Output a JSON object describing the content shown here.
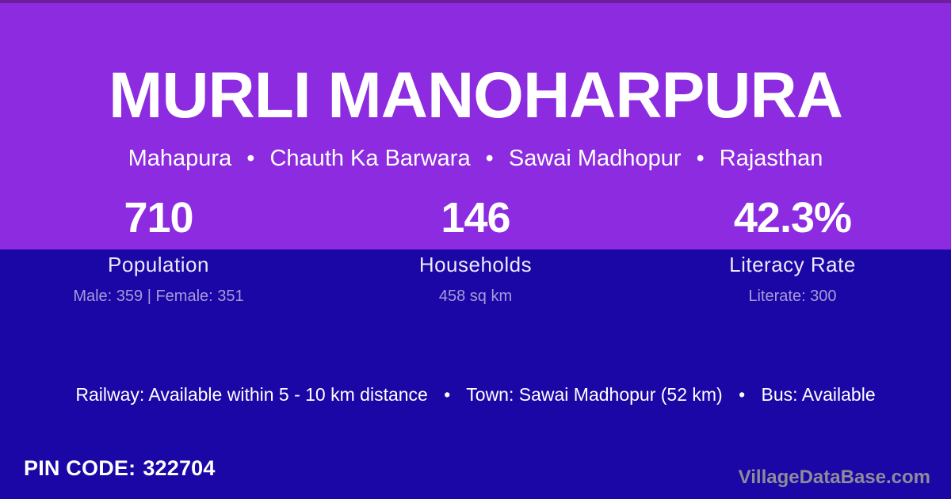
{
  "header": {
    "title": "MURLI MANOHARPURA",
    "breadcrumb": {
      "items": [
        "Mahapura",
        "Chauth Ka Barwara",
        "Sawai Madhopur",
        "Rajasthan"
      ],
      "separator": "•"
    }
  },
  "stats": [
    {
      "value": "710",
      "label": "Population",
      "detail": "Male: 359 | Female: 351"
    },
    {
      "value": "146",
      "label": "Households",
      "detail": "458 sq km"
    },
    {
      "value": "42.3%",
      "label": "Literacy Rate",
      "detail": "Literate: 300"
    }
  ],
  "transport": {
    "segments": [
      "Railway: Available within 5 - 10 km distance",
      "Town: Sawai Madhopur (52 km)",
      "Bus: Available"
    ],
    "separator": "•"
  },
  "footer": {
    "pin_label": "PIN CODE:",
    "pin_value": "322704",
    "watermark": "VillageDataBase.com"
  },
  "colors": {
    "purple_top": "#8C2BDF",
    "indigo_bottom": "#1B06A6",
    "top_strip": "#6E1E9B",
    "text_primary": "#FFFFFF",
    "text_label": "#EDE9F7",
    "text_muted_lavender": "#A79BD9",
    "watermark_gray": "#8D8D99"
  }
}
